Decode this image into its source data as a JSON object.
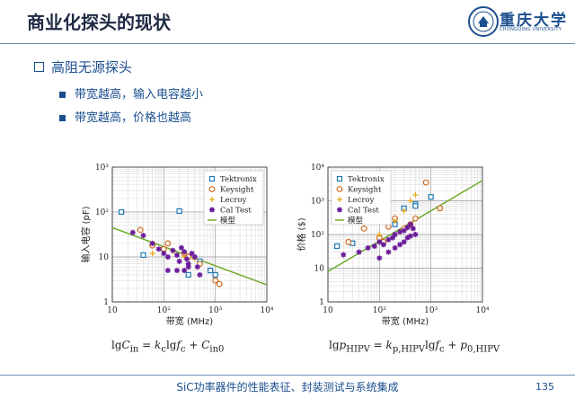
{
  "slide": {
    "title": "商业化探头的现状",
    "logo_text": "重庆大学",
    "logo_sub": "CHONGQING UNIVERSITY",
    "bullet_main": "高阻无源探头",
    "sub_bullets": [
      "带宽越高，输入电容越小",
      "带宽越高，价格也越高"
    ],
    "formula_left": "lgCin = kclgfc + Cin0",
    "formula_right": "lgpHIPV = kp,HIPVlgfc + p0,HIPV",
    "footer": "SiC功率器件的性能表征、封装测试与系统集成",
    "page_number": "135"
  },
  "colors": {
    "tektronix": "#1f77b4",
    "keysight": "#d2691e",
    "lecroy": "#e6a817",
    "caltest": "#6a1b9a",
    "model": "#66a61e",
    "accent": "#1b4f8f"
  },
  "chart_data": [
    {
      "type": "scatter",
      "ylabel": "输入电容 (pF)",
      "xlabel": "带宽 (MHz)",
      "xscale": "log",
      "yscale": "log",
      "xlim": [
        10,
        10000
      ],
      "ylim": [
        1,
        1000
      ],
      "xticks": [
        "10",
        "10²",
        "10³",
        "10⁴"
      ],
      "yticks": [
        "1",
        "10",
        "10²",
        "10³"
      ],
      "legend": [
        "Tektronix",
        "Keysight",
        "Lecroy",
        "Cal Test",
        "模型"
      ],
      "legend_position": "top-right",
      "grid": true,
      "series": [
        {
          "name": "Tektronix",
          "marker": "square",
          "points": [
            [
              15,
              100
            ],
            [
              40,
              11
            ],
            [
              200,
              105
            ],
            [
              300,
              4
            ],
            [
              500,
              8
            ],
            [
              800,
              5
            ],
            [
              1000,
              4
            ]
          ]
        },
        {
          "name": "Keysight",
          "marker": "circle",
          "points": [
            [
              35,
              40
            ],
            [
              60,
              18
            ],
            [
              100,
              15
            ],
            [
              120,
              20
            ],
            [
              250,
              12
            ],
            [
              300,
              10
            ],
            [
              500,
              7
            ],
            [
              1000,
              3
            ],
            [
              1200,
              2.5
            ]
          ]
        },
        {
          "name": "Lecroy",
          "marker": "plus",
          "points": [
            [
              60,
              12
            ],
            [
              150,
              13
            ],
            [
              250,
              10
            ],
            [
              400,
              9
            ]
          ]
        },
        {
          "name": "Cal Test",
          "marker": "star",
          "points": [
            [
              25,
              35
            ],
            [
              40,
              30
            ],
            [
              60,
              20
            ],
            [
              80,
              15
            ],
            [
              100,
              12
            ],
            [
              120,
              10
            ],
            [
              150,
              14
            ],
            [
              180,
              11
            ],
            [
              200,
              8
            ],
            [
              220,
              16
            ],
            [
              250,
              13
            ],
            [
              280,
              9
            ],
            [
              300,
              7
            ],
            [
              350,
              12
            ],
            [
              400,
              10
            ],
            [
              450,
              6
            ],
            [
              120,
              5
            ],
            [
              180,
              5
            ],
            [
              250,
              5
            ],
            [
              300,
              6
            ],
            [
              500,
              4
            ]
          ]
        },
        {
          "name": "模型",
          "type": "line",
          "points": [
            [
              10,
              45
            ],
            [
              10000,
              2.4
            ]
          ]
        }
      ]
    },
    {
      "type": "scatter",
      "ylabel": "价格 ($)",
      "xlabel": "带宽 (MHz)",
      "xscale": "log",
      "yscale": "log",
      "xlim": [
        10,
        10000
      ],
      "ylim": [
        1,
        10000
      ],
      "xticks": [
        "10",
        "10²",
        "10³",
        "10⁴"
      ],
      "yticks": [
        "1",
        "10",
        "10²",
        "10³",
        "10⁴"
      ],
      "legend": [
        "Tektronix",
        "Keysight",
        "Lecroy",
        "Cal Test",
        "模型"
      ],
      "legend_position": "top-left",
      "grid": true,
      "series": [
        {
          "name": "Tektronix",
          "marker": "square",
          "points": [
            [
              15,
              45
            ],
            [
              30,
              55
            ],
            [
              100,
              400
            ],
            [
              200,
              200
            ],
            [
              300,
              600
            ],
            [
              500,
              800
            ],
            [
              500,
              700
            ],
            [
              1000,
              1300
            ]
          ]
        },
        {
          "name": "Keysight",
          "marker": "circle",
          "points": [
            [
              25,
              60
            ],
            [
              50,
              150
            ],
            [
              100,
              80
            ],
            [
              120,
              60
            ],
            [
              150,
              170
            ],
            [
              200,
              300
            ],
            [
              300,
              150
            ],
            [
              400,
              200
            ],
            [
              500,
              300
            ],
            [
              800,
              3500
            ],
            [
              1500,
              600
            ]
          ]
        },
        {
          "name": "Lecroy",
          "marker": "plus",
          "points": [
            [
              100,
              100
            ],
            [
              200,
              250
            ],
            [
              300,
              500
            ],
            [
              400,
              1000
            ],
            [
              500,
              1500
            ]
          ]
        },
        {
          "name": "Cal Test",
          "marker": "star",
          "points": [
            [
              20,
              25
            ],
            [
              40,
              30
            ],
            [
              60,
              40
            ],
            [
              80,
              45
            ],
            [
              100,
              60
            ],
            [
              120,
              50
            ],
            [
              150,
              70
            ],
            [
              180,
              80
            ],
            [
              200,
              100
            ],
            [
              250,
              120
            ],
            [
              300,
              130
            ],
            [
              350,
              160
            ],
            [
              400,
              200
            ],
            [
              450,
              150
            ],
            [
              100,
              20
            ],
            [
              150,
              30
            ],
            [
              200,
              40
            ],
            [
              250,
              50
            ],
            [
              300,
              60
            ],
            [
              350,
              80
            ],
            [
              400,
              90
            ],
            [
              500,
              100
            ]
          ]
        },
        {
          "name": "模型",
          "type": "line",
          "points": [
            [
              10,
              8
            ],
            [
              10000,
              4000
            ]
          ]
        }
      ]
    }
  ]
}
